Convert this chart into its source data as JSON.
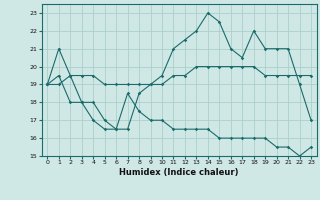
{
  "xlabel": "Humidex (Indice chaleur)",
  "background_color": "#cfe8e6",
  "grid_color": "#aacfcc",
  "line_color": "#1a6b6a",
  "xlim": [
    -0.5,
    23.5
  ],
  "ylim": [
    15,
    23.5
  ],
  "yticks": [
    15,
    16,
    17,
    18,
    19,
    20,
    21,
    22,
    23
  ],
  "xticks": [
    0,
    1,
    2,
    3,
    4,
    5,
    6,
    7,
    8,
    9,
    10,
    11,
    12,
    13,
    14,
    15,
    16,
    17,
    18,
    19,
    20,
    21,
    22,
    23
  ],
  "line1_x": [
    0,
    1,
    2,
    3,
    4,
    5,
    6,
    7,
    8,
    9,
    10,
    11,
    12,
    13,
    14,
    15,
    16,
    17,
    18,
    19,
    20,
    21,
    22,
    23
  ],
  "line1_y": [
    19,
    21,
    19.5,
    18,
    18,
    17,
    16.5,
    16.5,
    18.5,
    19,
    19.5,
    21,
    21.5,
    22,
    23,
    22.5,
    21,
    20.5,
    22,
    21,
    21,
    21,
    19,
    17
  ],
  "line2_x": [
    0,
    1,
    2,
    3,
    4,
    5,
    6,
    7,
    8,
    9,
    10,
    11,
    12,
    13,
    14,
    15,
    16,
    17,
    18,
    19,
    20,
    21,
    22,
    23
  ],
  "line2_y": [
    19,
    19,
    19.5,
    19.5,
    19.5,
    19,
    19,
    19,
    19,
    19,
    19,
    19.5,
    19.5,
    20,
    20,
    20,
    20,
    20,
    20,
    19.5,
    19.5,
    19.5,
    19.5,
    19.5
  ],
  "line3_x": [
    0,
    1,
    2,
    3,
    4,
    5,
    6,
    7,
    8,
    9,
    10,
    11,
    12,
    13,
    14,
    15,
    16,
    17,
    18,
    19,
    20,
    21,
    22,
    23
  ],
  "line3_y": [
    19,
    19.5,
    18,
    18,
    17,
    16.5,
    16.5,
    18.5,
    17.5,
    17,
    17,
    16.5,
    16.5,
    16.5,
    16.5,
    16,
    16,
    16,
    16,
    16,
    15.5,
    15.5,
    15,
    15.5
  ]
}
